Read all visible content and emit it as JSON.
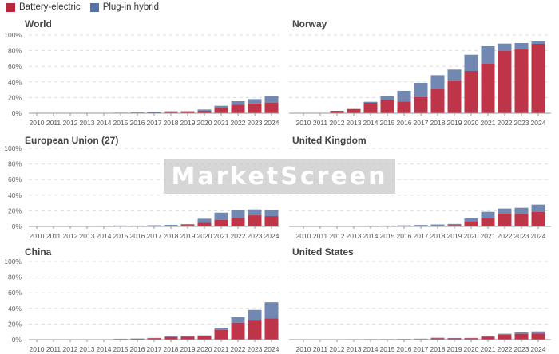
{
  "legend": [
    {
      "label": "Battery-electric",
      "color": "#b8283c"
    },
    {
      "label": "Plug-in hybrid",
      "color": "#5573a8"
    }
  ],
  "watermark": "MarketScreen",
  "chart_data": {
    "type": "bar",
    "stacked": true,
    "categories": [
      "2010",
      "2011",
      "2012",
      "2013",
      "2014",
      "2015",
      "2016",
      "2017",
      "2018",
      "2019",
      "2020",
      "2021",
      "2022",
      "2023",
      "2024"
    ],
    "ylim": [
      0,
      100
    ],
    "yticks": [
      "0%",
      "20%",
      "40%",
      "60%",
      "80%",
      "100%"
    ],
    "grid": true,
    "legend_position": "top-left",
    "colors": {
      "bev": "#be3448",
      "phev": "#7088b2"
    },
    "panels": [
      {
        "title": "World",
        "bev": [
          0,
          0,
          0,
          0.1,
          0.2,
          0.4,
          0.6,
          1.0,
          1.7,
          1.9,
          3.0,
          6.8,
          10.8,
          12.5,
          13.6
        ],
        "phev": [
          0,
          0,
          0,
          0.1,
          0.2,
          0.3,
          0.5,
          0.5,
          0.8,
          0.7,
          1.7,
          2.7,
          4.5,
          5.5,
          8.4
        ]
      },
      {
        "title": "Norway",
        "bev": [
          0,
          0,
          3.0,
          5.4,
          13.3,
          16.7,
          15.0,
          20.4,
          30.6,
          42.2,
          54.1,
          63.6,
          79.9,
          81.6,
          88.8
        ],
        "phev": [
          0,
          0,
          0,
          0,
          1.3,
          5.1,
          13.6,
          18.4,
          18.0,
          13.6,
          20.7,
          22.1,
          9.2,
          8.2,
          3.0
        ]
      },
      {
        "title": "European Union (27)",
        "bev": [
          0,
          0,
          0,
          0.1,
          0.3,
          0.5,
          0.5,
          0.7,
          1.0,
          1.9,
          4.7,
          8.5,
          11.2,
          14.2,
          13.2
        ],
        "phev": [
          0,
          0,
          0,
          0.1,
          0.3,
          0.7,
          0.6,
          0.8,
          1.0,
          1.1,
          5.1,
          9.1,
          9.5,
          7.5,
          7.5
        ]
      },
      {
        "title": "United Kingdom",
        "bev": [
          0,
          0,
          0,
          0.1,
          0.2,
          0.4,
          0.5,
          0.5,
          0.7,
          1.6,
          6.5,
          10.9,
          16.7,
          16.0,
          18.7
        ],
        "phev": [
          0,
          0,
          0,
          0.1,
          0.4,
          0.7,
          0.9,
          1.4,
          1.8,
          1.6,
          4.0,
          7.8,
          6.1,
          7.8,
          9.2
        ]
      },
      {
        "title": "China",
        "bev": [
          0,
          0,
          0,
          0.1,
          0.2,
          0.8,
          1.1,
          1.8,
          3.4,
          3.7,
          4.4,
          12.5,
          21.7,
          25.4,
          27.0
        ],
        "phev": [
          0,
          0,
          0,
          0,
          0.1,
          0.3,
          0.3,
          0.4,
          1.0,
          1.0,
          1.0,
          2.8,
          7.1,
          12.6,
          20.8
        ]
      },
      {
        "title": "United States",
        "bev": [
          0,
          0.1,
          0.1,
          0.3,
          0.4,
          0.4,
          0.5,
          0.6,
          1.6,
          1.5,
          1.7,
          3.7,
          6.1,
          7.5,
          7.8
        ],
        "phev": [
          0,
          0.1,
          0.3,
          0.3,
          0.3,
          0.3,
          0.4,
          0.6,
          0.8,
          0.6,
          0.5,
          1.4,
          1.4,
          2.0,
          2.7
        ]
      }
    ]
  }
}
